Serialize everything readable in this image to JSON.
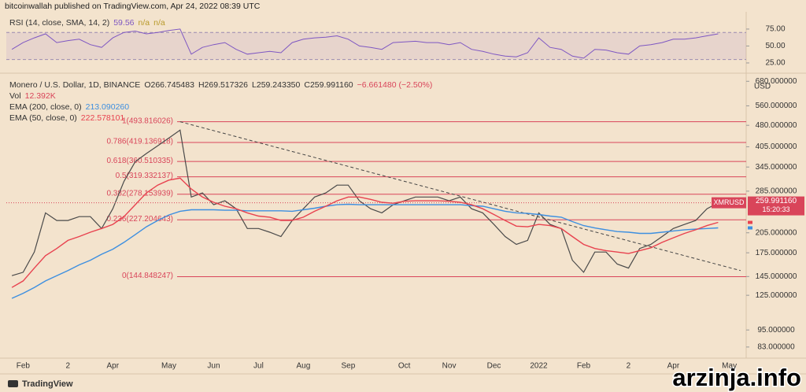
{
  "header": {
    "text": "bitcoinwallah published on TradingView.com, Apr 24, 2022 08:39 UTC"
  },
  "chart_data": [
    {
      "type": "line",
      "title": "RSI (14, close, SMA, 14, 2)",
      "legend_values": [
        "59.56",
        "n/a",
        "n/a"
      ],
      "color": "#7e57c2",
      "values": [
        45,
        55,
        62,
        68,
        55,
        58,
        60,
        52,
        48,
        62,
        70,
        72,
        68,
        70,
        73,
        75,
        38,
        48,
        52,
        55,
        45,
        38,
        40,
        42,
        40,
        55,
        60,
        62,
        63,
        65,
        60,
        50,
        48,
        45,
        55,
        56,
        57,
        55,
        55,
        52,
        55,
        45,
        42,
        38,
        35,
        34,
        40,
        62,
        48,
        45,
        35,
        32,
        45,
        44,
        40,
        38,
        50,
        52,
        55,
        60,
        60,
        62,
        65,
        68,
        null,
        null
      ],
      "ylim": [
        11,
        97
      ],
      "yticks": [
        {
          "value": 75,
          "label": "75.00"
        },
        {
          "value": 50,
          "label": "50.00"
        },
        {
          "value": 25,
          "label": "25.00"
        }
      ],
      "band": [
        30,
        70
      ]
    },
    {
      "type": "line",
      "title": "Monero / U.S. Dollar, 1D, BINANCE",
      "legend": [
        "O266.745483",
        "H269.517326",
        "L259.243350",
        "C259.991160",
        "−6.661480 (−2.50%)"
      ],
      "volume_label": "Vol",
      "volume_value": "12.392K",
      "log_scale": true,
      "y_unit": "USD",
      "ylim": [
        76,
        716
      ],
      "yticks": [
        {
          "value": 680,
          "label": "680.000000"
        },
        {
          "value": 560,
          "label": "560.000000"
        },
        {
          "value": 480,
          "label": "480.000000"
        },
        {
          "value": 405,
          "label": "405.000000"
        },
        {
          "value": 345,
          "label": "345.000000"
        },
        {
          "value": 285,
          "label": "285.000000"
        },
        {
          "value": 205,
          "label": "205.000000"
        },
        {
          "value": 175,
          "label": "175.000000"
        },
        {
          "value": 145,
          "label": "145.000000"
        },
        {
          "value": 125,
          "label": "125.000000"
        },
        {
          "value": 95,
          "label": "95.000000"
        },
        {
          "value": 83,
          "label": "83.000000"
        }
      ],
      "categories": [
        null,
        "Feb",
        null,
        null,
        null,
        "2",
        null,
        null,
        null,
        "Apr",
        null,
        null,
        null,
        null,
        "May",
        null,
        null,
        null,
        "Jun",
        null,
        null,
        null,
        "Jul",
        null,
        null,
        null,
        "Aug",
        null,
        null,
        null,
        "Sep",
        null,
        null,
        null,
        null,
        "Oct",
        null,
        null,
        null,
        "Nov",
        null,
        null,
        null,
        "Dec",
        null,
        null,
        null,
        "2022",
        null,
        null,
        null,
        "Feb",
        null,
        null,
        null,
        "2",
        null,
        null,
        null,
        "Apr",
        null,
        null,
        null,
        null,
        "May",
        null
      ],
      "series": [
        {
          "name": "XMRUSD",
          "color": "#4a4a4a",
          "last_label": "259.991160",
          "timer": "15:20:33",
          "values": [
            146,
            150,
            176,
            240,
            226,
            226,
            233,
            233,
            212,
            248,
            308,
            360,
            384,
            408,
            434,
            462,
            272,
            281,
            256,
            264,
            248,
            212,
            212,
            206,
            199,
            226,
            248,
            272,
            281,
            299,
            299,
            264,
            248,
            240,
            256,
            264,
            272,
            272,
            272,
            264,
            272,
            248,
            240,
            219,
            199,
            187,
            193,
            240,
            219,
            212,
            165,
            150,
            176,
            176,
            160,
            155,
            181,
            187,
            199,
            212,
            219,
            226,
            248,
            259.99116,
            null,
            null
          ]
        },
        {
          "name": "EMA (200, close, 0)",
          "color": "#3d8fe0",
          "last_label": "213.090260",
          "values": [
            122,
            127,
            133,
            140,
            146,
            152,
            159,
            165,
            173,
            180,
            190,
            202,
            215,
            226,
            236,
            243,
            246,
            246,
            246,
            245,
            245,
            244,
            244,
            244,
            244,
            243,
            246,
            249,
            253,
            256,
            257,
            256,
            256,
            256,
            256,
            256,
            256,
            256,
            256,
            256,
            256,
            254,
            253,
            248,
            243,
            240,
            239,
            237,
            234,
            232,
            224,
            217,
            213,
            210,
            207,
            206,
            204,
            204,
            206,
            208,
            210,
            211,
            212,
            213.09026,
            null,
            null
          ]
        },
        {
          "name": "EMA (50, close, 0)",
          "color": "#e8424f",
          "last_label": "222.578101",
          "values": [
            133,
            140,
            155,
            171,
            181,
            193,
            199,
            206,
            212,
            219,
            233,
            256,
            281,
            299,
            311,
            316,
            290,
            272,
            261,
            253,
            248,
            240,
            234,
            232,
            226,
            226,
            232,
            243,
            253,
            264,
            272,
            272,
            267,
            261,
            259,
            263,
            264,
            264,
            264,
            263,
            261,
            256,
            248,
            237,
            226,
            216,
            215,
            219,
            217,
            212,
            199,
            187,
            181,
            178,
            176,
            174,
            178,
            182,
            190,
            197,
            204,
            210,
            217,
            222.578101,
            null,
            null
          ]
        }
      ],
      "fib_color": "#d9455a",
      "fib_levels": [
        {
          "value": 493.816026,
          "label": "1(493.816026)"
        },
        {
          "value": 419.136918,
          "label": "0.786(419.136918)"
        },
        {
          "value": 360.510335,
          "label": "0.618(360.510335)"
        },
        {
          "value": 319.332137,
          "label": "0.5(319.332137)"
        },
        {
          "value": 278.153939,
          "label": "0.382(278.153939)"
        },
        {
          "value": 227.204643,
          "label": "0.236(227.204643)"
        },
        {
          "value": 144.848247,
          "label": "0(144.848247)"
        }
      ],
      "trendline": {
        "start_index": 15,
        "start_value": 493.816026,
        "end_index": 65,
        "end_value": 152
      }
    }
  ],
  "footer": {
    "brand": "TradingView",
    "watermark": "arzinja.info"
  }
}
